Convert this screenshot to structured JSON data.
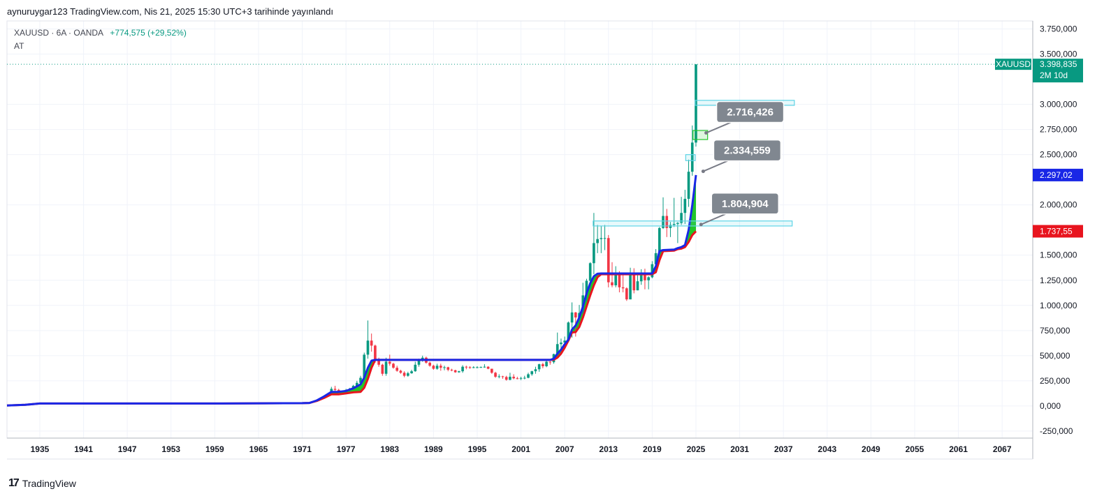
{
  "caption": "aynuruygar123 TradingView.com, Nis 21, 2025 15:30 UTC+3 tarihinde yayınlandı",
  "legend": {
    "symbol": "XAUUSD · 6A · OANDA",
    "change": "+774,575 (+29,52%)",
    "sub": "AT"
  },
  "footer": {
    "brand": "TradingView"
  },
  "colors": {
    "up": "#089981",
    "down": "#f23645",
    "blue_line": "#1927e6",
    "red_line": "#e8141e",
    "fill": "#22c52a",
    "box": "#5ed4e6",
    "label_bg": "#808790",
    "price_tag": "#089981"
  },
  "chart_data": {
    "type": "candlestick",
    "x_ticks": [
      "1935",
      "1941",
      "1947",
      "1953",
      "1959",
      "1965",
      "1971",
      "1977",
      "1983",
      "1989",
      "1995",
      "2001",
      "2007",
      "2013",
      "2019",
      "2025",
      "2031",
      "2037",
      "2043",
      "2049",
      "2055",
      "2061",
      "2067"
    ],
    "y_ticks": [
      "3.750,000",
      "3.500,000",
      "3.000,000",
      "2.750,000",
      "2.500,000",
      "2.000,000",
      "1.500,000",
      "1.250,000",
      "1.000,000",
      "750,000",
      "500,000",
      "250,000",
      "0,000",
      "-250,000"
    ],
    "y_tick_values": [
      3750,
      3500,
      3000,
      2750,
      2500,
      2000,
      1500,
      1250,
      1000,
      750,
      500,
      250,
      0,
      -250
    ],
    "ylim": [
      -320,
      3830
    ],
    "xlim": [
      1930.5,
      2071.2
    ],
    "price_tags": [
      {
        "text": "XAUUSD",
        "value": 3398.835,
        "text2": "3.398,835",
        "sub": "2M 10d",
        "color": "#089981"
      },
      {
        "text": "2.297,02",
        "value": 2297.02,
        "color": "#1927e6"
      },
      {
        "text": "1.737,55",
        "value": 1737.55,
        "color": "#e8141e"
      }
    ],
    "callouts": [
      {
        "text": "2.716,426",
        "value": 2716.426,
        "x": 2026.4,
        "anchor_value": 2716
      },
      {
        "text": "2.334,559",
        "value": 2334.559,
        "x": 2026.0,
        "anchor_value": 2334
      },
      {
        "text": "1.804,904",
        "value": 1804.904,
        "x": 2025.7,
        "anchor_value": 1805
      }
    ],
    "boxes": [
      {
        "x1": 2024.9,
        "x2": 2038.5,
        "y1": 2990,
        "y2": 3040,
        "color": "#5ed4e6"
      },
      {
        "x1": 2024.6,
        "x2": 2026.6,
        "y1": 2650,
        "y2": 2740,
        "color": "#22c52a"
      },
      {
        "x1": 2023.6,
        "x2": 2024.9,
        "y1": 2440,
        "y2": 2500,
        "color": "#5ed4e6"
      },
      {
        "x1": 2010.9,
        "x2": 2038.2,
        "y1": 1790,
        "y2": 1840,
        "color": "#5ed4e6"
      }
    ],
    "candles": [
      {
        "x": 1975.0,
        "o": 120,
        "h": 190,
        "l": 110,
        "c": 170
      },
      {
        "x": 1975.5,
        "o": 170,
        "h": 200,
        "l": 150,
        "c": 160
      },
      {
        "x": 1976.0,
        "o": 160,
        "h": 170,
        "l": 110,
        "c": 130
      },
      {
        "x": 1977.0,
        "o": 130,
        "h": 170,
        "l": 120,
        "c": 160
      },
      {
        "x": 1977.5,
        "o": 160,
        "h": 180,
        "l": 140,
        "c": 170
      },
      {
        "x": 1978.0,
        "o": 170,
        "h": 210,
        "l": 165,
        "c": 200
      },
      {
        "x": 1978.5,
        "o": 200,
        "h": 250,
        "l": 190,
        "c": 230
      },
      {
        "x": 1979.0,
        "o": 230,
        "h": 300,
        "l": 215,
        "c": 280
      },
      {
        "x": 1979.5,
        "o": 280,
        "h": 530,
        "l": 270,
        "c": 510
      },
      {
        "x": 1980.0,
        "o": 510,
        "h": 850,
        "l": 470,
        "c": 650
      },
      {
        "x": 1980.5,
        "o": 650,
        "h": 720,
        "l": 540,
        "c": 600
      },
      {
        "x": 1981.0,
        "o": 600,
        "h": 610,
        "l": 430,
        "c": 460
      },
      {
        "x": 1981.5,
        "o": 460,
        "h": 480,
        "l": 390,
        "c": 410
      },
      {
        "x": 1982.0,
        "o": 410,
        "h": 420,
        "l": 300,
        "c": 320
      },
      {
        "x": 1982.5,
        "o": 320,
        "h": 480,
        "l": 300,
        "c": 440
      },
      {
        "x": 1983.0,
        "o": 440,
        "h": 510,
        "l": 400,
        "c": 420
      },
      {
        "x": 1983.5,
        "o": 420,
        "h": 430,
        "l": 370,
        "c": 380
      },
      {
        "x": 1984.0,
        "o": 380,
        "h": 400,
        "l": 340,
        "c": 350
      },
      {
        "x": 1984.5,
        "o": 350,
        "h": 360,
        "l": 320,
        "c": 330
      },
      {
        "x": 1985.0,
        "o": 330,
        "h": 345,
        "l": 285,
        "c": 300
      },
      {
        "x": 1985.5,
        "o": 300,
        "h": 340,
        "l": 290,
        "c": 325
      },
      {
        "x": 1986.0,
        "o": 325,
        "h": 360,
        "l": 320,
        "c": 345
      },
      {
        "x": 1986.5,
        "o": 345,
        "h": 440,
        "l": 340,
        "c": 410
      },
      {
        "x": 1987.0,
        "o": 410,
        "h": 470,
        "l": 390,
        "c": 460
      },
      {
        "x": 1987.5,
        "o": 460,
        "h": 500,
        "l": 440,
        "c": 480
      },
      {
        "x": 1988.0,
        "o": 480,
        "h": 490,
        "l": 420,
        "c": 430
      },
      {
        "x": 1988.5,
        "o": 430,
        "h": 440,
        "l": 390,
        "c": 400
      },
      {
        "x": 1989.0,
        "o": 400,
        "h": 410,
        "l": 360,
        "c": 370
      },
      {
        "x": 1989.5,
        "o": 370,
        "h": 420,
        "l": 360,
        "c": 400
      },
      {
        "x": 1990.0,
        "o": 400,
        "h": 420,
        "l": 350,
        "c": 380
      },
      {
        "x": 1990.5,
        "o": 380,
        "h": 400,
        "l": 355,
        "c": 385
      },
      {
        "x": 1991.0,
        "o": 385,
        "h": 390,
        "l": 345,
        "c": 360
      },
      {
        "x": 1991.5,
        "o": 360,
        "h": 370,
        "l": 345,
        "c": 355
      },
      {
        "x": 1992.0,
        "o": 355,
        "h": 360,
        "l": 330,
        "c": 335
      },
      {
        "x": 1992.5,
        "o": 335,
        "h": 350,
        "l": 330,
        "c": 345
      },
      {
        "x": 1993.0,
        "o": 345,
        "h": 405,
        "l": 330,
        "c": 390
      },
      {
        "x": 1993.5,
        "o": 390,
        "h": 400,
        "l": 365,
        "c": 385
      },
      {
        "x": 1994.0,
        "o": 385,
        "h": 395,
        "l": 370,
        "c": 380
      },
      {
        "x": 1994.5,
        "o": 380,
        "h": 395,
        "l": 375,
        "c": 385
      },
      {
        "x": 1995.0,
        "o": 385,
        "h": 395,
        "l": 375,
        "c": 385
      },
      {
        "x": 1995.5,
        "o": 385,
        "h": 392,
        "l": 378,
        "c": 387
      },
      {
        "x": 1996.0,
        "o": 387,
        "h": 415,
        "l": 380,
        "c": 390
      },
      {
        "x": 1996.5,
        "o": 390,
        "h": 395,
        "l": 365,
        "c": 370
      },
      {
        "x": 1997.0,
        "o": 370,
        "h": 370,
        "l": 320,
        "c": 330
      },
      {
        "x": 1997.5,
        "o": 330,
        "h": 340,
        "l": 280,
        "c": 290
      },
      {
        "x": 1998.0,
        "o": 290,
        "h": 315,
        "l": 275,
        "c": 295
      },
      {
        "x": 1998.5,
        "o": 295,
        "h": 300,
        "l": 270,
        "c": 288
      },
      {
        "x": 1999.0,
        "o": 288,
        "h": 300,
        "l": 252,
        "c": 260
      },
      {
        "x": 1999.5,
        "o": 260,
        "h": 330,
        "l": 255,
        "c": 290
      },
      {
        "x": 2000.0,
        "o": 290,
        "h": 315,
        "l": 265,
        "c": 275
      },
      {
        "x": 2000.5,
        "o": 275,
        "h": 290,
        "l": 265,
        "c": 272
      },
      {
        "x": 2001.0,
        "o": 272,
        "h": 290,
        "l": 256,
        "c": 278
      },
      {
        "x": 2001.5,
        "o": 278,
        "h": 300,
        "l": 265,
        "c": 280
      },
      {
        "x": 2002.0,
        "o": 280,
        "h": 330,
        "l": 275,
        "c": 315
      },
      {
        "x": 2002.5,
        "o": 315,
        "h": 350,
        "l": 300,
        "c": 345
      },
      {
        "x": 2003.0,
        "o": 345,
        "h": 390,
        "l": 320,
        "c": 365
      },
      {
        "x": 2003.5,
        "o": 365,
        "h": 420,
        "l": 340,
        "c": 415
      },
      {
        "x": 2004.0,
        "o": 415,
        "h": 430,
        "l": 375,
        "c": 395
      },
      {
        "x": 2004.5,
        "o": 395,
        "h": 455,
        "l": 385,
        "c": 440
      },
      {
        "x": 2005.0,
        "o": 440,
        "h": 445,
        "l": 410,
        "c": 435
      },
      {
        "x": 2005.5,
        "o": 435,
        "h": 520,
        "l": 420,
        "c": 515
      },
      {
        "x": 2006.0,
        "o": 515,
        "h": 730,
        "l": 510,
        "c": 615
      },
      {
        "x": 2006.5,
        "o": 615,
        "h": 670,
        "l": 560,
        "c": 630
      },
      {
        "x": 2007.0,
        "o": 630,
        "h": 690,
        "l": 600,
        "c": 650
      },
      {
        "x": 2007.5,
        "o": 650,
        "h": 840,
        "l": 640,
        "c": 830
      },
      {
        "x": 2008.0,
        "o": 830,
        "h": 1030,
        "l": 680,
        "c": 930
      },
      {
        "x": 2008.5,
        "o": 930,
        "h": 935,
        "l": 690,
        "c": 880
      },
      {
        "x": 2009.0,
        "o": 880,
        "h": 1005,
        "l": 810,
        "c": 925
      },
      {
        "x": 2009.5,
        "o": 925,
        "h": 1225,
        "l": 910,
        "c": 1100
      },
      {
        "x": 2010.0,
        "o": 1100,
        "h": 1265,
        "l": 1040,
        "c": 1245
      },
      {
        "x": 2010.5,
        "o": 1245,
        "h": 1430,
        "l": 1160,
        "c": 1420
      },
      {
        "x": 2011.0,
        "o": 1420,
        "h": 1920,
        "l": 1310,
        "c": 1620
      },
      {
        "x": 2011.5,
        "o": 1620,
        "h": 1800,
        "l": 1520,
        "c": 1660
      },
      {
        "x": 2012.0,
        "o": 1660,
        "h": 1790,
        "l": 1520,
        "c": 1670
      },
      {
        "x": 2012.5,
        "o": 1670,
        "h": 1800,
        "l": 1550,
        "c": 1670
      },
      {
        "x": 2013.0,
        "o": 1670,
        "h": 1700,
        "l": 1180,
        "c": 1230
      },
      {
        "x": 2013.5,
        "o": 1230,
        "h": 1430,
        "l": 1180,
        "c": 1200
      },
      {
        "x": 2014.0,
        "o": 1200,
        "h": 1390,
        "l": 1180,
        "c": 1320
      },
      {
        "x": 2014.5,
        "o": 1320,
        "h": 1340,
        "l": 1130,
        "c": 1180
      },
      {
        "x": 2015.0,
        "o": 1180,
        "h": 1300,
        "l": 1130,
        "c": 1170
      },
      {
        "x": 2015.5,
        "o": 1170,
        "h": 1180,
        "l": 1045,
        "c": 1060
      },
      {
        "x": 2016.0,
        "o": 1060,
        "h": 1375,
        "l": 1060,
        "c": 1320
      },
      {
        "x": 2016.5,
        "o": 1320,
        "h": 1370,
        "l": 1120,
        "c": 1150
      },
      {
        "x": 2017.0,
        "o": 1150,
        "h": 1300,
        "l": 1150,
        "c": 1240
      },
      {
        "x": 2017.5,
        "o": 1240,
        "h": 1360,
        "l": 1205,
        "c": 1300
      },
      {
        "x": 2018.0,
        "o": 1300,
        "h": 1365,
        "l": 1160,
        "c": 1250
      },
      {
        "x": 2018.5,
        "o": 1250,
        "h": 1290,
        "l": 1160,
        "c": 1280
      },
      {
        "x": 2019.0,
        "o": 1280,
        "h": 1440,
        "l": 1270,
        "c": 1410
      },
      {
        "x": 2019.5,
        "o": 1410,
        "h": 1560,
        "l": 1400,
        "c": 1520
      },
      {
        "x": 2020.0,
        "o": 1520,
        "h": 1780,
        "l": 1450,
        "c": 1770
      },
      {
        "x": 2020.5,
        "o": 1770,
        "h": 2075,
        "l": 1760,
        "c": 1890
      },
      {
        "x": 2021.0,
        "o": 1890,
        "h": 1960,
        "l": 1680,
        "c": 1770
      },
      {
        "x": 2021.5,
        "o": 1770,
        "h": 1830,
        "l": 1680,
        "c": 1800
      },
      {
        "x": 2022.0,
        "o": 1800,
        "h": 2070,
        "l": 1780,
        "c": 1810
      },
      {
        "x": 2022.5,
        "o": 1810,
        "h": 1830,
        "l": 1620,
        "c": 1820
      },
      {
        "x": 2023.0,
        "o": 1820,
        "h": 2080,
        "l": 1800,
        "c": 1920
      },
      {
        "x": 2023.5,
        "o": 1920,
        "h": 2150,
        "l": 1810,
        "c": 2060
      },
      {
        "x": 2024.0,
        "o": 2060,
        "h": 2450,
        "l": 1980,
        "c": 2330
      },
      {
        "x": 2024.5,
        "o": 2330,
        "h": 2790,
        "l": 2290,
        "c": 2620
      },
      {
        "x": 2025.0,
        "o": 2620,
        "h": 3400,
        "l": 2580,
        "c": 3398
      }
    ],
    "blue_line": [
      [
        1930.5,
        5
      ],
      [
        1933,
        12
      ],
      [
        1935,
        24
      ],
      [
        1960,
        24
      ],
      [
        1971,
        28
      ],
      [
        1972,
        30
      ],
      [
        1973,
        55
      ],
      [
        1974,
        95
      ],
      [
        1975,
        140
      ],
      [
        1976,
        140
      ],
      [
        1977,
        150
      ],
      [
        1978,
        175
      ],
      [
        1979,
        215
      ],
      [
        1979.5,
        280
      ],
      [
        1980,
        380
      ],
      [
        1980.5,
        450
      ],
      [
        1981,
        458
      ],
      [
        2005,
        458
      ],
      [
        2005.5,
        470
      ],
      [
        2006,
        520
      ],
      [
        2006.5,
        560
      ],
      [
        2007,
        615
      ],
      [
        2007.5,
        660
      ],
      [
        2008,
        760
      ],
      [
        2008.5,
        800
      ],
      [
        2009,
        880
      ],
      [
        2009.5,
        990
      ],
      [
        2010,
        1120
      ],
      [
        2010.5,
        1220
      ],
      [
        2011,
        1290
      ],
      [
        2011.5,
        1315
      ],
      [
        2012,
        1318
      ],
      [
        2019,
        1318
      ],
      [
        2019.5,
        1390
      ],
      [
        2020,
        1540
      ],
      [
        2020.5,
        1550
      ],
      [
        2022,
        1555
      ],
      [
        2022.5,
        1570
      ],
      [
        2023,
        1580
      ],
      [
        2023.5,
        1600
      ],
      [
        2024,
        1750
      ],
      [
        2024.5,
        2000
      ],
      [
        2025,
        2297
      ]
    ],
    "red_line": [
      [
        1930.5,
        5
      ],
      [
        1933,
        12
      ],
      [
        1935,
        24
      ],
      [
        1960,
        24
      ],
      [
        1971,
        28
      ],
      [
        1972,
        30
      ],
      [
        1973,
        50
      ],
      [
        1974,
        80
      ],
      [
        1975,
        115
      ],
      [
        1976,
        115
      ],
      [
        1977,
        125
      ],
      [
        1978,
        135
      ],
      [
        1979,
        140
      ],
      [
        1979.5,
        180
      ],
      [
        1980,
        270
      ],
      [
        1980.5,
        380
      ],
      [
        1981,
        458
      ],
      [
        2005,
        458
      ],
      [
        2005.5,
        460
      ],
      [
        2006,
        480
      ],
      [
        2006.5,
        520
      ],
      [
        2007,
        580
      ],
      [
        2007.5,
        650
      ],
      [
        2008,
        730
      ],
      [
        2008.5,
        735
      ],
      [
        2009,
        785
      ],
      [
        2009.5,
        880
      ],
      [
        2010,
        990
      ],
      [
        2010.5,
        1100
      ],
      [
        2011,
        1200
      ],
      [
        2011.5,
        1280
      ],
      [
        2012,
        1310
      ],
      [
        2019,
        1310
      ],
      [
        2019.5,
        1330
      ],
      [
        2020,
        1450
      ],
      [
        2020.5,
        1540
      ],
      [
        2022,
        1545
      ],
      [
        2022.5,
        1560
      ],
      [
        2023,
        1565
      ],
      [
        2023.5,
        1580
      ],
      [
        2024,
        1630
      ],
      [
        2024.5,
        1700
      ],
      [
        2025,
        1737
      ]
    ]
  }
}
